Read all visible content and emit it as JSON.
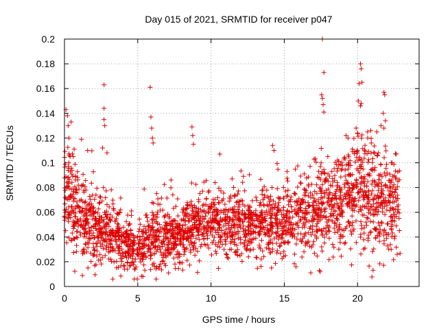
{
  "chart_data": {
    "type": "scatter",
    "title": "Day 015 of 2021, SRMTID for receiver p047",
    "xlabel": "GPS time / hours",
    "ylabel": "SRMTID / TECUs",
    "xlim": [
      0,
      24.2
    ],
    "ylim": [
      0,
      0.2
    ],
    "grid": true,
    "marker": "+",
    "x_ticks": [
      0,
      5,
      10,
      15,
      20
    ],
    "x_tick_labels": [
      "0",
      "5",
      "10",
      "15",
      "20"
    ],
    "y_ticks": [
      0,
      0.02,
      0.04,
      0.06,
      0.08,
      0.1,
      0.12,
      0.14,
      0.16,
      0.18,
      0.2
    ],
    "y_tick_labels": [
      "0",
      "0.02",
      "0.04",
      "0.06",
      "0.08",
      "0.1",
      "0.12",
      "0.14",
      "0.16",
      "0.18",
      "0.2"
    ],
    "series": [
      {
        "name": "SRMTID",
        "color": "#dd0000",
        "seed": 15,
        "x_range": [
          0,
          22.9
        ],
        "point_count": 2600,
        "baseline": [
          [
            0,
            0.082
          ],
          [
            0.5,
            0.07
          ],
          [
            1,
            0.06
          ],
          [
            2,
            0.05
          ],
          [
            3,
            0.045
          ],
          [
            4,
            0.032
          ],
          [
            5,
            0.034
          ],
          [
            6,
            0.04
          ],
          [
            7,
            0.038
          ],
          [
            8,
            0.042
          ],
          [
            9,
            0.048
          ],
          [
            10,
            0.05
          ],
          [
            11,
            0.052
          ],
          [
            12,
            0.05
          ],
          [
            13,
            0.048
          ],
          [
            14,
            0.05
          ],
          [
            15,
            0.052
          ],
          [
            16,
            0.056
          ],
          [
            17,
            0.06
          ],
          [
            18,
            0.064
          ],
          [
            19,
            0.068
          ],
          [
            20,
            0.078
          ],
          [
            21,
            0.072
          ],
          [
            22,
            0.066
          ],
          [
            22.9,
            0.062
          ]
        ],
        "spread": [
          [
            0,
            0.022
          ],
          [
            1,
            0.018
          ],
          [
            3,
            0.014
          ],
          [
            4,
            0.01
          ],
          [
            6,
            0.012
          ],
          [
            9,
            0.013
          ],
          [
            12,
            0.013
          ],
          [
            15,
            0.015
          ],
          [
            18,
            0.018
          ],
          [
            20,
            0.024
          ],
          [
            22.9,
            0.02
          ]
        ],
        "highlights": [
          {
            "x": 0.1,
            "y": 0.143
          },
          {
            "x": 0.2,
            "y": 0.138
          },
          {
            "x": 0.25,
            "y": 0.13
          },
          {
            "x": 0.45,
            "y": 0.133
          },
          {
            "x": 0.3,
            "y": 0.12
          },
          {
            "x": 0.6,
            "y": 0.105
          },
          {
            "x": 2.7,
            "y": 0.163
          },
          {
            "x": 2.7,
            "y": 0.144
          },
          {
            "x": 2.7,
            "y": 0.135
          },
          {
            "x": 2.75,
            "y": 0.13
          },
          {
            "x": 2.6,
            "y": 0.112
          },
          {
            "x": 2.9,
            "y": 0.108
          },
          {
            "x": 5.85,
            "y": 0.161
          },
          {
            "x": 5.9,
            "y": 0.137
          },
          {
            "x": 5.95,
            "y": 0.128
          },
          {
            "x": 6.0,
            "y": 0.12
          },
          {
            "x": 6.05,
            "y": 0.116
          },
          {
            "x": 8.7,
            "y": 0.129
          },
          {
            "x": 8.75,
            "y": 0.122
          },
          {
            "x": 8.8,
            "y": 0.115
          },
          {
            "x": 10.6,
            "y": 0.107
          },
          {
            "x": 14.2,
            "y": 0.114
          },
          {
            "x": 14.3,
            "y": 0.11
          },
          {
            "x": 17.6,
            "y": 0.2
          },
          {
            "x": 17.7,
            "y": 0.173
          },
          {
            "x": 17.55,
            "y": 0.155
          },
          {
            "x": 17.6,
            "y": 0.152
          },
          {
            "x": 17.65,
            "y": 0.147
          },
          {
            "x": 17.7,
            "y": 0.141
          },
          {
            "x": 17.4,
            "y": 0.013
          },
          {
            "x": 17.45,
            "y": 0.012
          },
          {
            "x": 20.2,
            "y": 0.18
          },
          {
            "x": 20.25,
            "y": 0.176
          },
          {
            "x": 20.1,
            "y": 0.164
          },
          {
            "x": 20.3,
            "y": 0.165
          },
          {
            "x": 20.05,
            "y": 0.15
          },
          {
            "x": 20.2,
            "y": 0.146
          },
          {
            "x": 20.25,
            "y": 0.148
          },
          {
            "x": 19.9,
            "y": 0.128
          },
          {
            "x": 20.0,
            "y": 0.124
          },
          {
            "x": 20.9,
            "y": 0.126
          },
          {
            "x": 21.6,
            "y": 0.13
          },
          {
            "x": 21.8,
            "y": 0.157
          },
          {
            "x": 21.85,
            "y": 0.155
          },
          {
            "x": 21.75,
            "y": 0.14
          },
          {
            "x": 21.9,
            "y": 0.134
          },
          {
            "x": 21.8,
            "y": 0.128
          },
          {
            "x": 22.3,
            "y": 0.1
          },
          {
            "x": 5.35,
            "y": 0.008
          },
          {
            "x": 4.1,
            "y": 0.014
          },
          {
            "x": 1.6,
            "y": 0.015
          },
          {
            "x": 7.1,
            "y": 0.011
          },
          {
            "x": 15.8,
            "y": 0.016
          }
        ]
      }
    ]
  }
}
